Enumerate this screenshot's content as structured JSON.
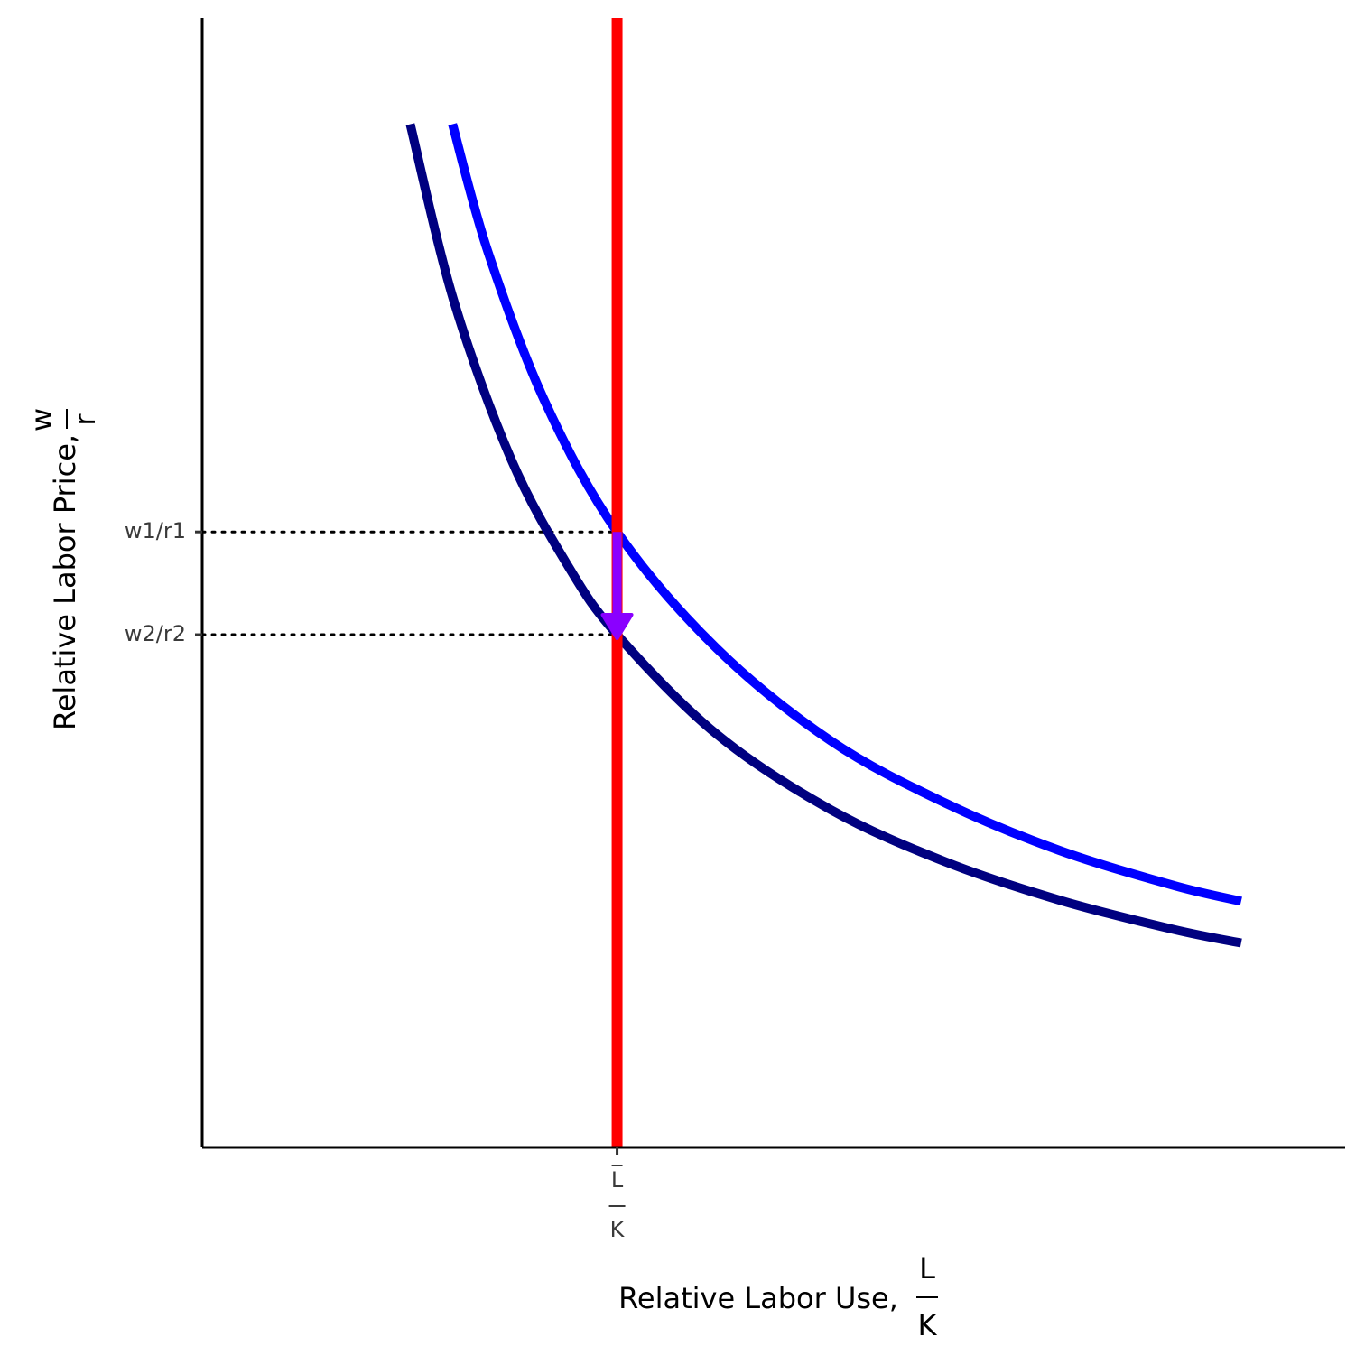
{
  "chart_data": {
    "type": "line",
    "title": "",
    "xlabel": "Relative Labor Use,",
    "xlabel_fraction": {
      "numerator": "L",
      "denominator": "K"
    },
    "ylabel": "Relative Labor Price,",
    "ylabel_fraction": {
      "numerator": "w",
      "denominator": "r"
    },
    "xlim": [
      0,
      10
    ],
    "ylim": [
      0,
      10
    ],
    "grid": false,
    "legend": "none",
    "colors": {
      "supply": "#ff0000",
      "demand1": "#0000ff",
      "demand2": "#000080",
      "shift_arrow": "#8a00ff",
      "guide": "#000000",
      "axis": "#000000"
    },
    "x_ticks": [
      {
        "value": 3.63,
        "numerator": "L",
        "denominator": "K",
        "overbar": true
      }
    ],
    "y_ticks": [
      {
        "value": 5.45,
        "label": "w1/r1"
      },
      {
        "value": 4.54,
        "label": "w2/r2"
      }
    ],
    "series": [
      {
        "role": "demand1",
        "color": "#0000ff",
        "x": [
          2.19,
          2.5,
          3.0,
          3.63,
          4.5,
          5.5,
          6.5,
          7.5,
          8.5,
          9.09
        ],
        "y": [
          9.06,
          7.93,
          6.6,
          5.45,
          4.42,
          3.6,
          3.05,
          2.63,
          2.32,
          2.18
        ]
      },
      {
        "role": "demand2",
        "color": "#000080",
        "x": [
          1.82,
          2.2,
          2.7,
          3.2,
          3.63,
          4.5,
          5.5,
          6.5,
          7.5,
          8.5,
          9.09
        ],
        "y": [
          9.06,
          7.5,
          6.1,
          5.15,
          4.54,
          3.66,
          2.99,
          2.53,
          2.19,
          1.93,
          1.81
        ]
      }
    ],
    "vertical_line": {
      "role": "supply",
      "x": 3.63,
      "color": "#ff0000"
    },
    "shift_arrow": {
      "x": 3.63,
      "from": 5.45,
      "to": 4.54,
      "color": "#8a00ff"
    }
  }
}
